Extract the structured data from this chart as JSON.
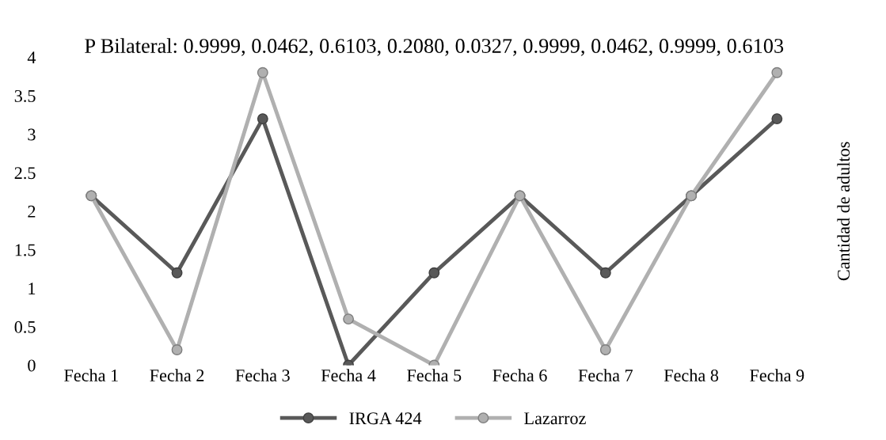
{
  "chart_data": {
    "type": "line",
    "title": "P Bilateral: 0.9999, 0.0462, 0.6103, 0.2080, 0.0327, 0.9999, 0.0462, 0.9999, 0.6103",
    "ylabel": "Cantidad de adultos",
    "categories": [
      "Fecha 1",
      "Fecha 2",
      "Fecha 3",
      "Fecha 4",
      "Fecha 5",
      "Fecha 6",
      "Fecha 7",
      "Fecha 8",
      "Fecha 9"
    ],
    "series": [
      {
        "name": "IRGA 424",
        "color": "#595959",
        "values": [
          2.2,
          1.2,
          3.2,
          0,
          1.2,
          2.2,
          1.2,
          2.2,
          3.2
        ]
      },
      {
        "name": "Lazarroz",
        "color": "#b0b0b0",
        "values": [
          2.2,
          0.2,
          3.8,
          0.6,
          0,
          2.2,
          0.2,
          2.2,
          3.8
        ]
      }
    ],
    "ylim": [
      0,
      4
    ],
    "yticks": [
      0,
      0.5,
      1,
      1.5,
      2,
      2.5,
      3,
      3.5,
      4
    ],
    "grid": false,
    "legend": "bottom",
    "marker": "circle",
    "line_style": "solid"
  }
}
